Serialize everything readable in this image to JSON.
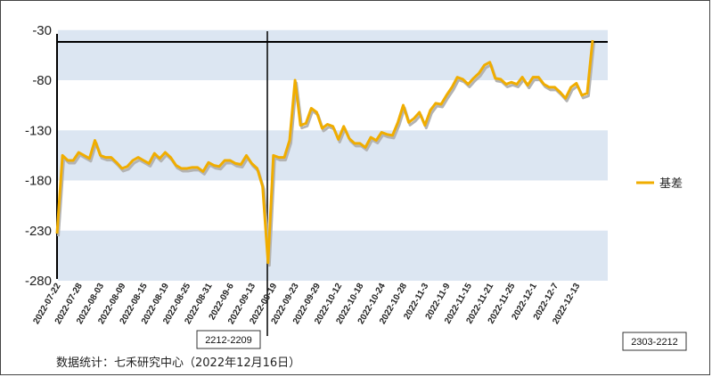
{
  "chart_data": {
    "type": "line",
    "ylim": [
      -280,
      0
    ],
    "yticks": [
      -30,
      -80,
      -130,
      -180,
      -230,
      -280
    ],
    "bands": [
      [
        -80,
        -30
      ],
      [
        -180,
        -130
      ],
      [
        -280,
        -230
      ]
    ],
    "xtick_labels": [
      "2022-07-22",
      "2022-07-28",
      "2022-08-03",
      "2022-08-09",
      "2022-08-15",
      "2022-08-19",
      "2022-08-25",
      "2022-08-31",
      "2022-09-6",
      "2022-09-13",
      "2022-09-19",
      "2022-09-23",
      "2022-09-29",
      "2022-10-12",
      "2022-10-18",
      "2022-10-24",
      "2022-10-28",
      "2022-11-3",
      "2022-11-9",
      "2022-11-15",
      "2022-11-21",
      "2022-11-25",
      "2022-12-1",
      "2022-12-7",
      "2022-12-13"
    ],
    "xtick_positions": [
      0,
      4,
      8,
      12,
      16,
      20,
      24,
      28,
      32,
      36,
      40,
      44,
      48,
      52,
      56,
      60,
      64,
      68,
      72,
      76,
      80,
      84,
      88,
      92,
      96
    ],
    "series": [
      {
        "name": "基差",
        "color": "#f0ad00",
        "values": [
          -233,
          -155,
          -160,
          -160,
          -152,
          -155,
          -158,
          -140,
          -155,
          -157,
          -157,
          -162,
          -168,
          -166,
          -160,
          -157,
          -160,
          -163,
          -153,
          -158,
          -152,
          -157,
          -165,
          -168,
          -168,
          -167,
          -167,
          -171,
          -162,
          -165,
          -166,
          -160,
          -160,
          -163,
          -164,
          -155,
          -163,
          -168,
          -186,
          -262,
          -155,
          -157,
          -157,
          -140,
          -80,
          -125,
          -123,
          -108,
          -112,
          -128,
          -124,
          -126,
          -139,
          -126,
          -138,
          -143,
          -143,
          -147,
          -137,
          -140,
          -132,
          -134,
          -135,
          -122,
          -105,
          -122,
          -118,
          -112,
          -125,
          -110,
          -103,
          -104,
          -95,
          -87,
          -77,
          -79,
          -84,
          -78,
          -73,
          -65,
          -62,
          -78,
          -79,
          -84,
          -82,
          -84,
          -77,
          -85,
          -77,
          -77,
          -84,
          -87,
          -87,
          -92,
          -98,
          -87,
          -83,
          -95,
          -93,
          -40
        ]
      }
    ],
    "legend": {
      "position": "right",
      "label": "基差"
    },
    "annotations": [
      "2212-2209",
      "2303-2212"
    ],
    "grid": false
  },
  "source_note": "数据统计：七禾研究中心（2022年12月16日）",
  "colors": {
    "band": "#dce6f2",
    "line": "#f0ad00",
    "shadow": "#b3b3b3",
    "axis": "#000000"
  }
}
